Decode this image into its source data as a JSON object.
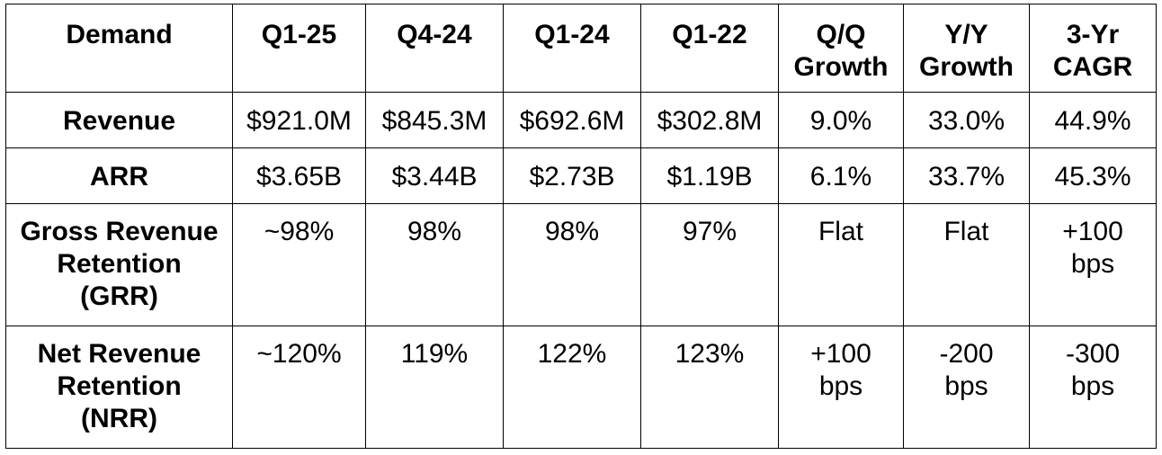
{
  "table": {
    "header": {
      "label": "Demand",
      "columns": [
        [
          "Q1-25"
        ],
        [
          "Q4-24"
        ],
        [
          "Q1-24"
        ],
        [
          "Q1-22"
        ],
        [
          "Q/Q",
          "Growth"
        ],
        [
          "Y/Y",
          "Growth"
        ],
        [
          "3-Yr",
          "CAGR"
        ]
      ]
    },
    "rows": [
      {
        "label": [
          "Revenue"
        ],
        "cells": [
          [
            "$921.0M"
          ],
          [
            "$845.3M"
          ],
          [
            "$692.6M"
          ],
          [
            "$302.8M"
          ],
          [
            "9.0%"
          ],
          [
            "33.0%"
          ],
          [
            "44.9%"
          ]
        ]
      },
      {
        "label": [
          "ARR"
        ],
        "cells": [
          [
            "$3.65B"
          ],
          [
            "$3.44B"
          ],
          [
            "$2.73B"
          ],
          [
            "$1.19B"
          ],
          [
            "6.1%"
          ],
          [
            "33.7%"
          ],
          [
            "45.3%"
          ]
        ]
      },
      {
        "label": [
          "Gross Revenue",
          "Retention",
          "(GRR)"
        ],
        "cells": [
          [
            "~98%"
          ],
          [
            "98%"
          ],
          [
            "98%"
          ],
          [
            "97%"
          ],
          [
            "Flat"
          ],
          [
            "Flat"
          ],
          [
            "+100",
            "bps"
          ]
        ]
      },
      {
        "label": [
          "Net Revenue",
          "Retention",
          "(NRR)"
        ],
        "cells": [
          [
            "~120%"
          ],
          [
            "119%"
          ],
          [
            "122%"
          ],
          [
            "123%"
          ],
          [
            "+100",
            "bps"
          ],
          [
            "-200",
            "bps"
          ],
          [
            "-300",
            "bps"
          ]
        ]
      }
    ]
  }
}
